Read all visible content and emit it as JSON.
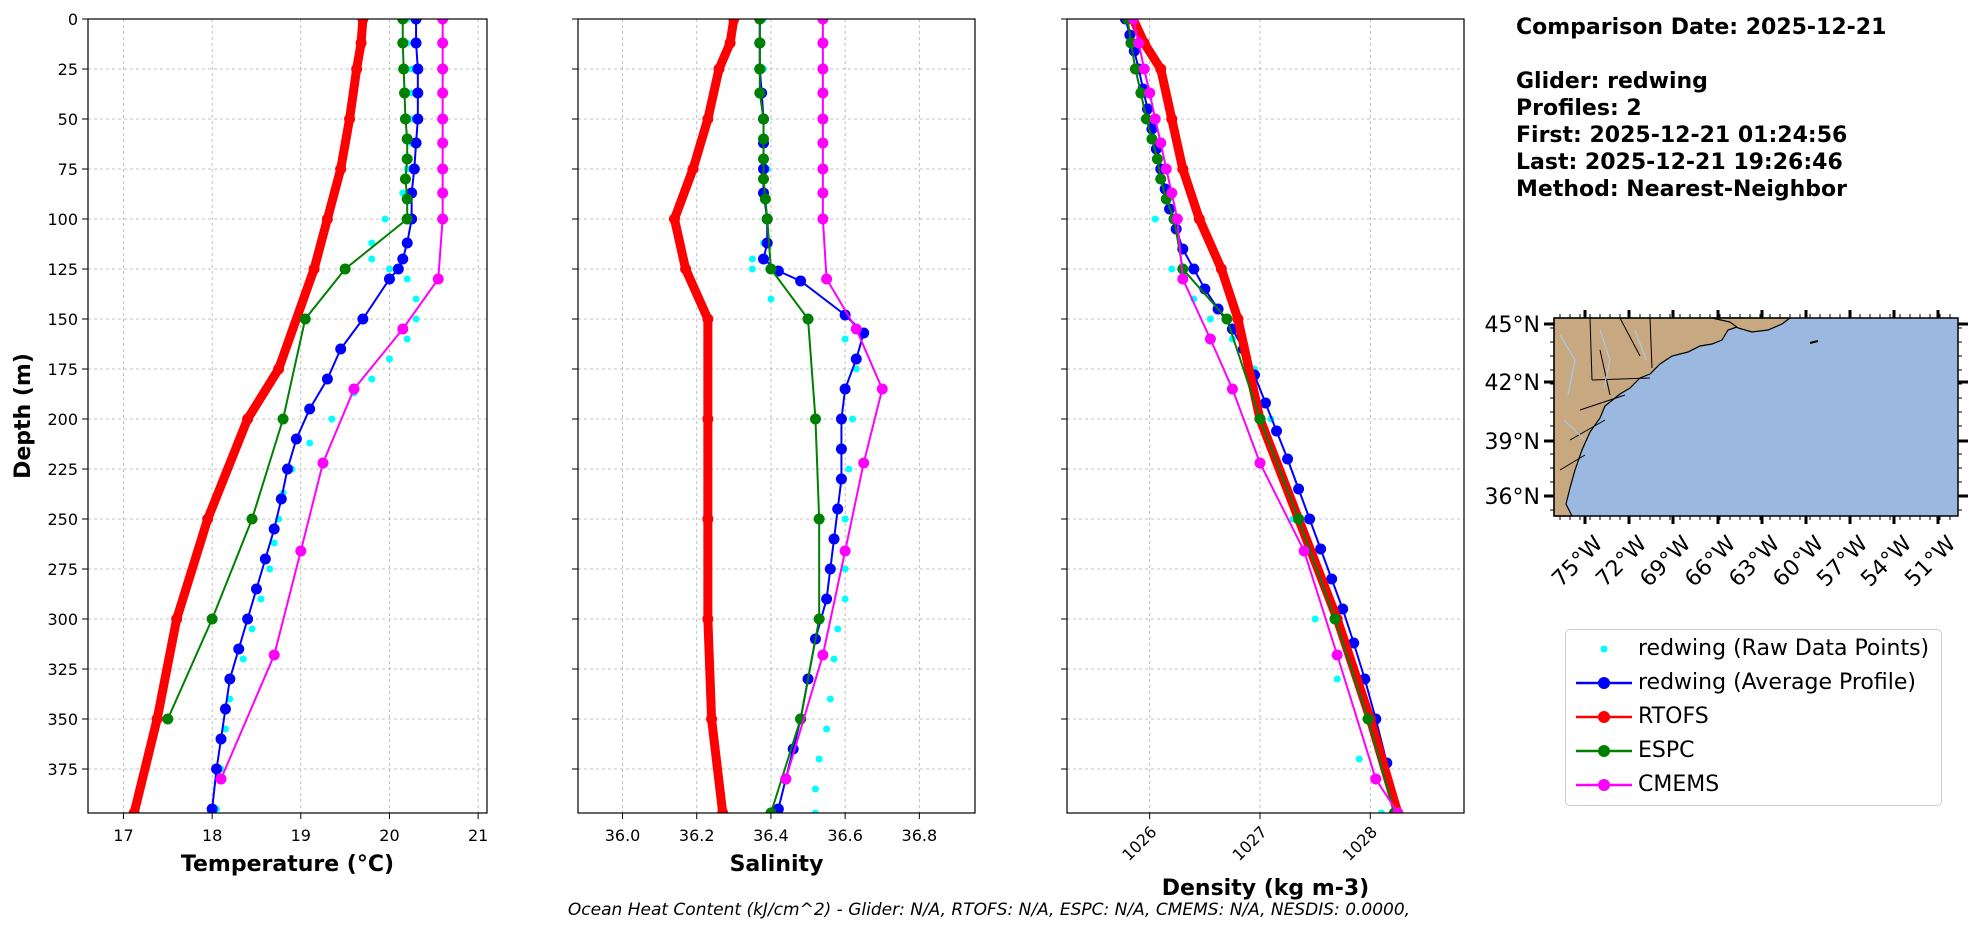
{
  "chart_data": [
    {
      "type": "line",
      "xlabel": "Temperature (°C)",
      "ylabel": "Depth (m)",
      "xlim": [
        16.6,
        21.1
      ],
      "ylim": [
        397,
        0
      ],
      "xticks": [
        17,
        18,
        19,
        20,
        21
      ],
      "yticks": [
        0,
        25,
        50,
        75,
        100,
        125,
        150,
        175,
        200,
        225,
        250,
        275,
        300,
        325,
        350,
        375
      ],
      "grid": true,
      "series": [
        {
          "name": "redwing (Raw Data Points)",
          "color": "#00ffff",
          "style": "dots",
          "x": [
            20.2,
            20.2,
            20.25,
            20.25,
            20.25,
            20.25,
            20.2,
            20.15,
            19.95,
            19.8,
            19.8,
            20.0,
            20.2,
            20.3,
            20.3,
            20.2,
            20.0,
            19.8,
            19.6,
            19.35,
            19.1,
            18.9,
            18.8,
            18.75,
            18.7,
            18.65,
            18.55,
            18.45,
            18.35,
            18.2,
            18.15,
            18.1,
            18.05
          ],
          "y": [
            0,
            12,
            25,
            37,
            50,
            62,
            75,
            87,
            100,
            112,
            120,
            125,
            130,
            140,
            150,
            160,
            170,
            180,
            187,
            200,
            212,
            225,
            237,
            250,
            262,
            275,
            290,
            305,
            320,
            340,
            355,
            375,
            395
          ]
        },
        {
          "name": "redwing (Average Profile)",
          "color": "#0000ff",
          "style": "marker-line",
          "x": [
            20.3,
            20.3,
            20.32,
            20.32,
            20.32,
            20.3,
            20.28,
            20.25,
            20.25,
            20.2,
            20.15,
            20.1,
            20.0,
            19.7,
            19.45,
            19.3,
            19.1,
            18.95,
            18.85,
            18.78,
            18.7,
            18.6,
            18.5,
            18.4,
            18.3,
            18.2,
            18.15,
            18.1,
            18.05,
            18.0
          ],
          "y": [
            0,
            12,
            25,
            37,
            50,
            62,
            75,
            87,
            100,
            112,
            120,
            125,
            130,
            150,
            165,
            180,
            195,
            210,
            225,
            240,
            255,
            270,
            285,
            300,
            315,
            330,
            345,
            360,
            375,
            395
          ]
        },
        {
          "name": "RTOFS",
          "color": "#ff0000",
          "style": "thick",
          "x": [
            19.7,
            19.68,
            19.63,
            19.55,
            19.45,
            19.3,
            19.15,
            18.75,
            18.4,
            17.95,
            17.6,
            17.38,
            17.12
          ],
          "y": [
            0,
            12,
            25,
            50,
            75,
            100,
            125,
            175,
            200,
            250,
            300,
            350,
            397
          ]
        },
        {
          "name": "ESPC",
          "color": "#008000",
          "style": "marker-line",
          "x": [
            20.15,
            20.15,
            20.16,
            20.17,
            20.18,
            20.2,
            20.2,
            20.18,
            20.2,
            20.2,
            19.5,
            19.05,
            18.8,
            18.45,
            18.0,
            17.5
          ],
          "y": [
            0,
            12,
            25,
            37,
            50,
            60,
            70,
            80,
            90,
            100,
            125,
            150,
            200,
            250,
            300,
            350
          ]
        },
        {
          "name": "CMEMS",
          "color": "#ff00ff",
          "style": "marker-line",
          "x": [
            20.6,
            20.6,
            20.6,
            20.6,
            20.6,
            20.6,
            20.6,
            20.6,
            20.6,
            20.55,
            20.15,
            19.6,
            19.25,
            19.0,
            18.7,
            18.1
          ],
          "y": [
            0,
            12,
            25,
            37,
            50,
            62,
            75,
            87,
            100,
            130,
            155,
            185,
            222,
            266,
            318,
            380
          ]
        }
      ]
    },
    {
      "type": "line",
      "xlabel": "Salinity",
      "xlim": [
        35.88,
        36.95
      ],
      "ylim": [
        397,
        0
      ],
      "xticks": [
        36.0,
        36.2,
        36.4,
        36.6,
        36.8
      ],
      "grid": true,
      "series": [
        {
          "name": "redwing (Raw Data Points)",
          "color": "#00ffff",
          "style": "dots",
          "x": [
            36.38,
            36.38,
            36.385,
            36.39,
            36.39,
            36.38,
            36.35,
            36.35,
            36.4,
            36.5,
            36.6,
            36.63,
            36.62,
            36.61,
            36.6,
            36.6,
            36.6,
            36.58,
            36.57,
            36.56,
            36.55,
            36.53,
            36.52,
            36.52
          ],
          "y": [
            0,
            25,
            50,
            75,
            100,
            112,
            120,
            125,
            140,
            150,
            160,
            175,
            200,
            225,
            250,
            275,
            290,
            305,
            320,
            340,
            355,
            370,
            385,
            397
          ]
        },
        {
          "name": "redwing (Average Profile)",
          "color": "#0000ff",
          "style": "marker-line",
          "x": [
            36.37,
            36.37,
            36.37,
            36.375,
            36.38,
            36.38,
            36.38,
            36.38,
            36.39,
            36.39,
            36.38,
            36.42,
            36.48,
            36.6,
            36.65,
            36.63,
            36.6,
            36.59,
            36.59,
            36.59,
            36.58,
            36.57,
            36.56,
            36.55,
            36.52,
            36.5,
            36.48,
            36.46,
            36.44,
            36.42
          ],
          "y": [
            0,
            12,
            25,
            37,
            50,
            62,
            75,
            87,
            100,
            112,
            120,
            126,
            131,
            148,
            157,
            170,
            185,
            200,
            215,
            230,
            245,
            260,
            275,
            290,
            310,
            330,
            350,
            365,
            380,
            395
          ]
        },
        {
          "name": "RTOFS",
          "color": "#ff0000",
          "style": "thick",
          "x": [
            36.3,
            36.29,
            36.26,
            36.23,
            36.19,
            36.14,
            36.17,
            36.23,
            36.23,
            36.23,
            36.23,
            36.24,
            36.27
          ],
          "y": [
            0,
            12,
            25,
            50,
            75,
            100,
            125,
            150,
            200,
            250,
            300,
            350,
            397
          ]
        },
        {
          "name": "ESPC",
          "color": "#008000",
          "style": "marker-line",
          "x": [
            36.37,
            36.37,
            36.37,
            36.37,
            36.38,
            36.38,
            36.38,
            36.38,
            36.385,
            36.39,
            36.4,
            36.5,
            36.52,
            36.53,
            36.53,
            36.48,
            36.4
          ],
          "y": [
            0,
            12,
            25,
            37,
            50,
            60,
            70,
            80,
            90,
            100,
            125,
            150,
            200,
            250,
            300,
            350,
            397
          ]
        },
        {
          "name": "CMEMS",
          "color": "#ff00ff",
          "style": "marker-line",
          "x": [
            36.54,
            36.54,
            36.54,
            36.54,
            36.54,
            36.54,
            36.54,
            36.54,
            36.54,
            36.55,
            36.63,
            36.7,
            36.65,
            36.6,
            36.54,
            36.44
          ],
          "y": [
            0,
            12,
            25,
            37,
            50,
            62,
            75,
            87,
            100,
            130,
            155,
            185,
            222,
            266,
            318,
            380
          ]
        }
      ]
    },
    {
      "type": "line",
      "xlabel": "Density (kg m-3)",
      "xlim": [
        1025.25,
        1028.85
      ],
      "ylim": [
        397,
        0
      ],
      "xticks": [
        1026,
        1027,
        1028
      ],
      "grid": true,
      "series": [
        {
          "name": "redwing (Raw Data Points)",
          "color": "#00ffff",
          "style": "dots",
          "x": [
            1025.78,
            1025.95,
            1026.05,
            1026.2,
            1026.4,
            1026.55,
            1026.75,
            1026.95,
            1027.1,
            1027.3,
            1027.5,
            1027.7,
            1027.9,
            1028.1
          ],
          "y": [
            0,
            50,
            100,
            125,
            140,
            150,
            160,
            175,
            200,
            250,
            300,
            330,
            370,
            397
          ]
        },
        {
          "name": "redwing (Average Profile)",
          "color": "#0000ff",
          "style": "marker-line",
          "x": [
            1025.78,
            1025.82,
            1025.86,
            1025.9,
            1025.94,
            1025.98,
            1026.02,
            1026.06,
            1026.1,
            1026.14,
            1026.18,
            1026.24,
            1026.3,
            1026.4,
            1026.5,
            1026.62,
            1026.75,
            1026.85,
            1026.95,
            1027.05,
            1027.15,
            1027.25,
            1027.35,
            1027.45,
            1027.55,
            1027.65,
            1027.75,
            1027.85,
            1027.95,
            1028.05,
            1028.15,
            1028.22
          ],
          "y": [
            0,
            8,
            16,
            25,
            35,
            45,
            55,
            65,
            75,
            85,
            95,
            105,
            115,
            125,
            135,
            145,
            155,
            165,
            178,
            192,
            206,
            220,
            235,
            250,
            265,
            280,
            295,
            312,
            330,
            350,
            372,
            397
          ]
        },
        {
          "name": "RTOFS",
          "color": "#ff0000",
          "style": "thick",
          "x": [
            1025.85,
            1025.95,
            1026.1,
            1026.2,
            1026.3,
            1026.45,
            1026.65,
            1026.8,
            1027.0,
            1027.35,
            1027.7,
            1028.0,
            1028.25
          ],
          "y": [
            0,
            12,
            25,
            50,
            75,
            100,
            125,
            150,
            200,
            250,
            300,
            350,
            397
          ]
        },
        {
          "name": "ESPC",
          "color": "#008000",
          "style": "marker-line",
          "x": [
            1025.8,
            1025.83,
            1025.87,
            1025.92,
            1025.97,
            1026.02,
            1026.07,
            1026.1,
            1026.15,
            1026.22,
            1026.3,
            1026.7,
            1027.0,
            1027.35,
            1027.68,
            1027.98,
            1028.22
          ],
          "y": [
            0,
            12,
            25,
            37,
            50,
            60,
            70,
            80,
            90,
            100,
            125,
            150,
            200,
            250,
            300,
            350,
            397
          ]
        },
        {
          "name": "CMEMS",
          "color": "#ff00ff",
          "style": "marker-line",
          "x": [
            1025.85,
            1025.9,
            1025.95,
            1026.0,
            1026.05,
            1026.1,
            1026.15,
            1026.2,
            1026.25,
            1026.3,
            1026.55,
            1026.75,
            1027.0,
            1027.4,
            1027.7,
            1028.05,
            1028.25
          ],
          "y": [
            0,
            12,
            25,
            37,
            50,
            62,
            75,
            87,
            100,
            130,
            160,
            185,
            222,
            266,
            318,
            380,
            397
          ]
        }
      ]
    }
  ],
  "map": {
    "lat_labels": [
      "45°N",
      "42°N",
      "39°N",
      "36°N"
    ],
    "lon_labels": [
      "75°W",
      "72°W",
      "69°W",
      "66°W",
      "63°W",
      "60°W",
      "57°W",
      "54°W",
      "51°W"
    ],
    "ocean_color": "#9ab8e0",
    "land_color": "#c8a880"
  },
  "info": {
    "lines": [
      "Comparison Date: 2025-12-21",
      "",
      "Glider: redwing",
      "Profiles: 2",
      "First: 2025-12-21 01:24:56",
      "Last: 2025-12-21 19:26:46",
      "Method: Nearest-Neighbor"
    ]
  },
  "legend": [
    {
      "label": "redwing (Raw Data Points)",
      "color": "#00ffff",
      "style": "dots"
    },
    {
      "label": "redwing (Average Profile)",
      "color": "#0000ff",
      "style": "marker-line"
    },
    {
      "label": "RTOFS",
      "color": "#ff0000",
      "style": "marker-line"
    },
    {
      "label": "ESPC",
      "color": "#008000",
      "style": "marker-line"
    },
    {
      "label": "CMEMS",
      "color": "#ff00ff",
      "style": "marker-line"
    }
  ],
  "footer": "Ocean Heat Content (kJ/cm^2) - Glider: N/A,  RTOFS: N/A,  ESPC: N/A,  CMEMS: N/A,  NESDIS: 0.0000,"
}
